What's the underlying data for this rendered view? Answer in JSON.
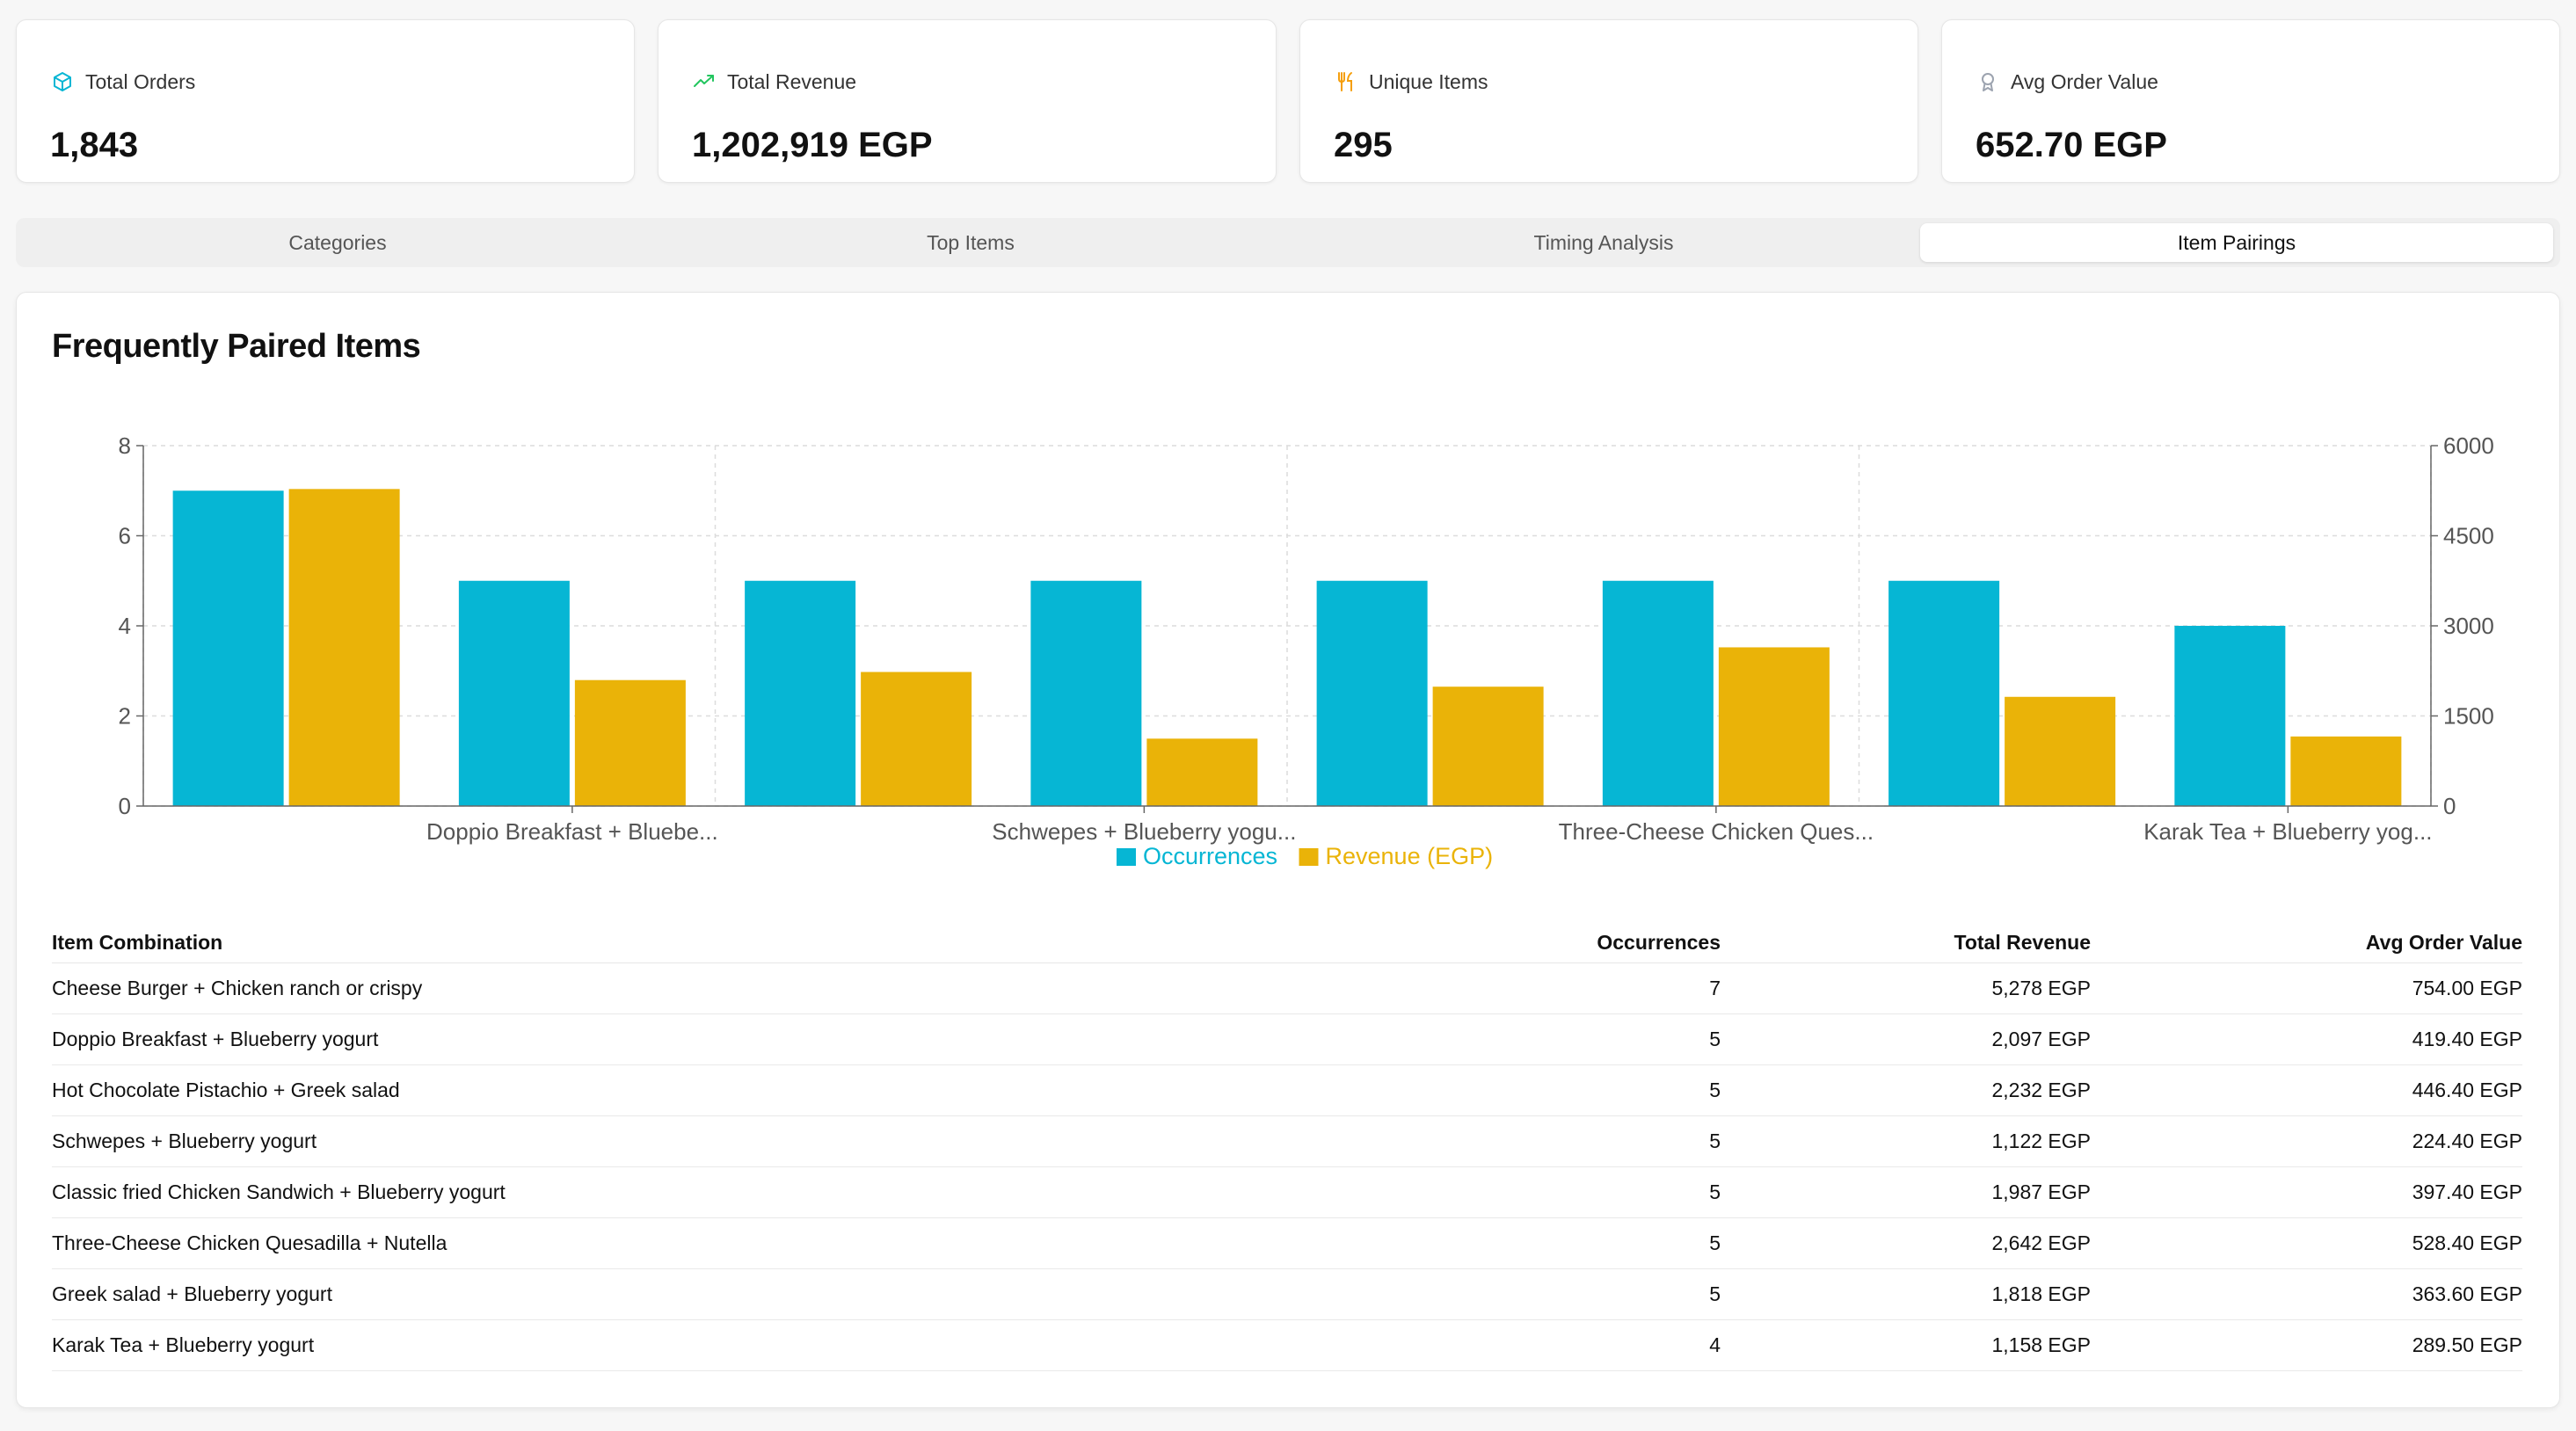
{
  "stats": [
    {
      "label": "Total Orders",
      "value": "1,843",
      "icon": "box-icon",
      "color": "#06b6d4"
    },
    {
      "label": "Total Revenue",
      "value": "1,202,919 EGP",
      "icon": "trending-up-icon",
      "color": "#22c55e"
    },
    {
      "label": "Unique Items",
      "value": "295",
      "icon": "utensils-icon",
      "color": "#f59e0b"
    },
    {
      "label": "Avg Order Value",
      "value": "652.70 EGP",
      "icon": "award-icon",
      "color": "#9ca3af"
    }
  ],
  "tabs": [
    "Categories",
    "Top Items",
    "Timing Analysis",
    "Item Pairings"
  ],
  "active_tab": "Item Pairings",
  "panel_title": "Frequently Paired Items",
  "chart_data": {
    "type": "bar",
    "categories": [
      "Cheese Burger + Chicken ranch or crispy",
      "Doppio Breakfast + Blueberry yogurt",
      "Hot Chocolate Pistachio + Greek salad",
      "Schwepes + Blueberry yogurt",
      "Classic fried Chicken Sandwich + Blueberry yogurt",
      "Three-Cheese Chicken Quesadilla + Nutella",
      "Greek salad + Blueberry yogurt",
      "Karak Tea + Blueberry yogurt"
    ],
    "visible_tick_labels": [
      {
        "index": 1,
        "text": "Doppio Breakfast + Bluebe..."
      },
      {
        "index": 3,
        "text": "Schwepes + Blueberry yogu..."
      },
      {
        "index": 5,
        "text": "Three-Cheese Chicken Ques..."
      },
      {
        "index": 7,
        "text": "Karak Tea + Blueberry yog..."
      }
    ],
    "series": [
      {
        "name": "Occurrences",
        "axis": "left",
        "color": "#06b6d4",
        "values": [
          7,
          5,
          5,
          5,
          5,
          5,
          5,
          4
        ]
      },
      {
        "name": "Revenue (EGP)",
        "axis": "right",
        "color": "#eab308",
        "values": [
          5278,
          2097,
          2232,
          1122,
          1987,
          2642,
          1818,
          1158
        ]
      }
    ],
    "y_left": {
      "min": 0,
      "max": 8,
      "ticks": [
        0,
        2,
        4,
        6,
        8
      ]
    },
    "y_right": {
      "min": 0,
      "max": 6000,
      "ticks": [
        0,
        1500,
        3000,
        4500,
        6000
      ]
    },
    "grid": true,
    "legend_position": "bottom"
  },
  "table": {
    "headers": [
      "Item Combination",
      "Occurrences",
      "Total Revenue",
      "Avg Order Value"
    ],
    "rows": [
      [
        "Cheese Burger + Chicken ranch or crispy",
        "7",
        "5,278 EGP",
        "754.00 EGP"
      ],
      [
        "Doppio Breakfast + Blueberry yogurt",
        "5",
        "2,097 EGP",
        "419.40 EGP"
      ],
      [
        "Hot Chocolate Pistachio + Greek salad",
        "5",
        "2,232 EGP",
        "446.40 EGP"
      ],
      [
        "Schwepes + Blueberry yogurt",
        "5",
        "1,122 EGP",
        "224.40 EGP"
      ],
      [
        "Classic fried Chicken Sandwich + Blueberry yogurt",
        "5",
        "1,987 EGP",
        "397.40 EGP"
      ],
      [
        "Three-Cheese Chicken Quesadilla + Nutella",
        "5",
        "2,642 EGP",
        "528.40 EGP"
      ],
      [
        "Greek salad + Blueberry yogurt",
        "5",
        "1,818 EGP",
        "363.60 EGP"
      ],
      [
        "Karak Tea + Blueberry yogurt",
        "4",
        "1,158 EGP",
        "289.50 EGP"
      ]
    ]
  }
}
